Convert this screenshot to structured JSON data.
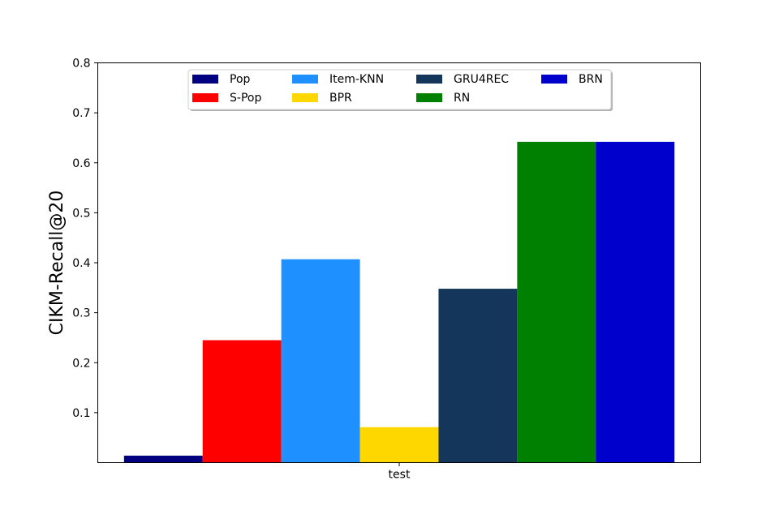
{
  "chart_data": {
    "type": "bar",
    "title": "",
    "xlabel": "",
    "ylabel": "CIKM-Recall@20",
    "categories": [
      "test"
    ],
    "ylim": [
      0.0,
      0.8
    ],
    "yticks": [
      "0.1",
      "0.2",
      "0.3",
      "0.4",
      "0.5",
      "0.6",
      "0.7",
      "0.8"
    ],
    "grid": false,
    "legend_position": "top-center",
    "legend_columns": 4,
    "series": [
      {
        "name": "Pop",
        "color": "#000080",
        "values": [
          0.014
        ]
      },
      {
        "name": "S-Pop",
        "color": "#ff0000",
        "values": [
          0.245
        ]
      },
      {
        "name": "Item-KNN",
        "color": "#1e90ff",
        "values": [
          0.407
        ]
      },
      {
        "name": "BPR",
        "color": "#ffd700",
        "values": [
          0.071
        ]
      },
      {
        "name": "GRU4REC",
        "color": "#14365a",
        "values": [
          0.348
        ]
      },
      {
        "name": "RN",
        "color": "#008000",
        "values": [
          0.642
        ]
      },
      {
        "name": "BRN",
        "color": "#0000cd",
        "values": [
          0.642
        ]
      }
    ]
  }
}
